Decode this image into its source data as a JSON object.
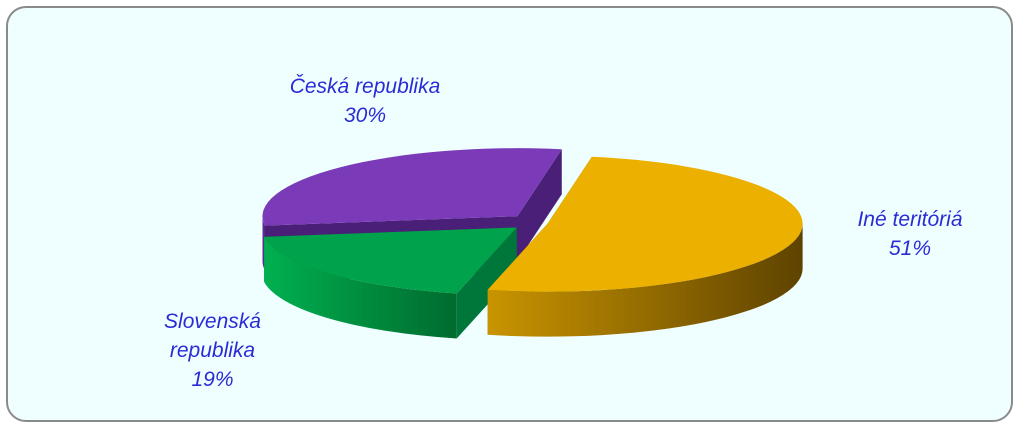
{
  "chart_data": {
    "type": "pie",
    "categories": [
      "Česká republika",
      "Slovenská republika",
      "Iné teritóriá"
    ],
    "values": [
      30,
      19,
      51
    ],
    "value_labels": [
      "30%",
      "19%",
      "51%"
    ],
    "colors": [
      "#7b3bb9",
      "#00a24b",
      "#ebb000"
    ]
  }
}
